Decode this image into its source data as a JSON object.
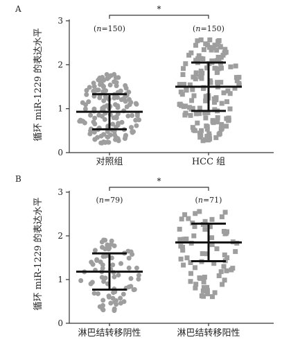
{
  "chart_data": [
    {
      "panel": "A",
      "type": "scatter",
      "ylabel": "循环 miR-1229 的表达水平",
      "ylim": [
        0,
        3
      ],
      "yticks": [
        "0",
        "1",
        "2",
        "3"
      ],
      "significance": "*",
      "groups": [
        {
          "name": "对照组",
          "n_label_prefix": "(",
          "n_label_n": "n",
          "n_label_rest": "=150)",
          "marker": "circle",
          "color": "#9e9e9e",
          "mean": 0.93,
          "sd": 0.4,
          "upper": 1.33,
          "lower": 0.53,
          "y_min": 0.2,
          "y_max": 1.78,
          "count": 150
        },
        {
          "name": "HCC 组",
          "n_label_prefix": "(",
          "n_label_n": "n",
          "n_label_rest": "=150)",
          "marker": "square",
          "color": "#9e9e9e",
          "mean": 1.5,
          "sd": 0.55,
          "upper": 2.05,
          "lower": 0.95,
          "y_min": 0.25,
          "y_max": 2.58,
          "count": 150
        }
      ]
    },
    {
      "panel": "B",
      "type": "scatter",
      "ylabel": "循环 miR-1229 的表达水平",
      "ylim": [
        0,
        3
      ],
      "yticks": [
        "0",
        "1",
        "2",
        "3"
      ],
      "significance": "*",
      "groups": [
        {
          "name": "淋巴结转移阴性",
          "n_label_prefix": "(",
          "n_label_n": "n",
          "n_label_rest": "=79)",
          "marker": "circle",
          "color": "#9e9e9e",
          "mean": 1.18,
          "sd": 0.42,
          "upper": 1.6,
          "lower": 0.77,
          "y_min": 0.28,
          "y_max": 1.92,
          "count": 79
        },
        {
          "name": "淋巴结转移阳性",
          "n_label_prefix": "(",
          "n_label_n": "n",
          "n_label_rest": "=71)",
          "marker": "square",
          "color": "#9e9e9e",
          "mean": 1.85,
          "sd": 0.44,
          "upper": 2.28,
          "lower": 1.42,
          "y_min": 0.58,
          "y_max": 2.58,
          "count": 71
        }
      ]
    }
  ]
}
